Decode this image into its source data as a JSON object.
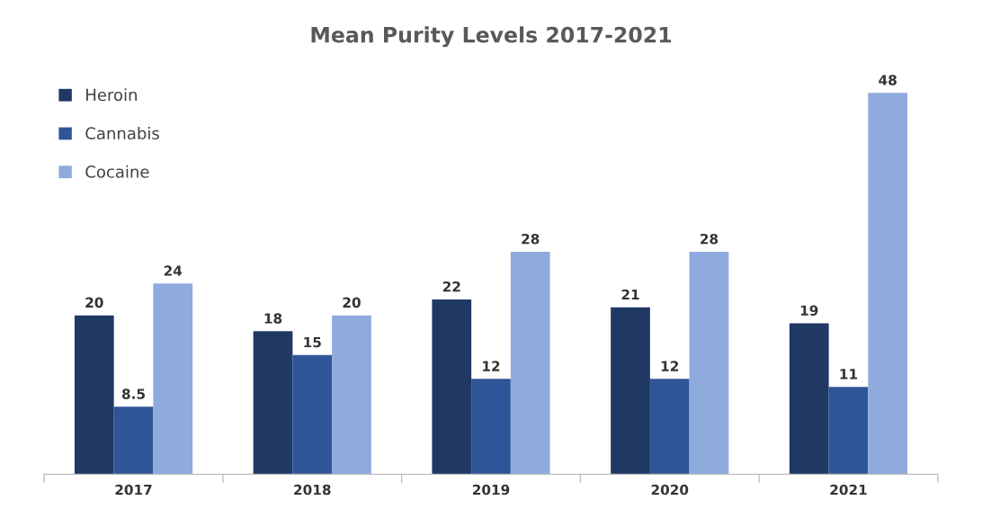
{
  "chart_data": {
    "type": "bar",
    "title": "Mean Purity Levels 2017-2021",
    "categories": [
      "2017",
      "2018",
      "2019",
      "2020",
      "2021"
    ],
    "series": [
      {
        "name": "Heroin",
        "color": "#1f3864",
        "values": [
          20,
          18,
          22,
          21,
          19
        ]
      },
      {
        "name": "Cannabis",
        "color": "#2e5597",
        "values": [
          8.5,
          15,
          12,
          12,
          11
        ]
      },
      {
        "name": "Cocaine",
        "color": "#8faadc",
        "values": [
          24,
          20,
          28,
          28,
          48
        ]
      }
    ],
    "data_labels": true,
    "legend": "top left",
    "grid": false
  }
}
